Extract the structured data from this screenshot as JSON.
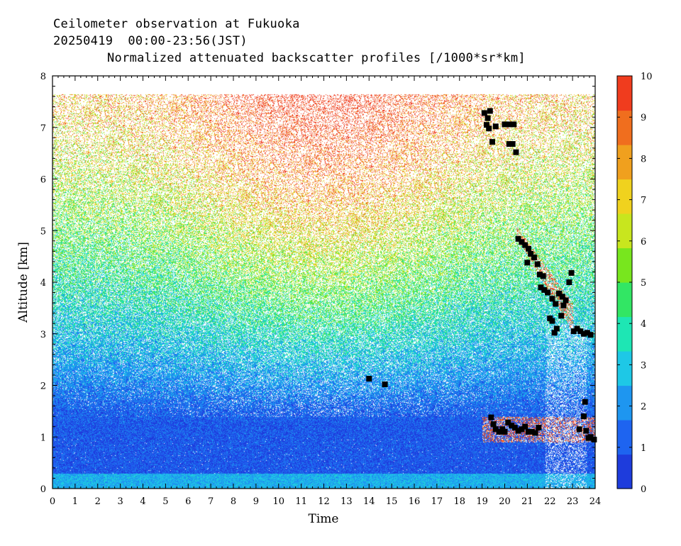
{
  "header": {
    "line1": "Ceilometer observation at Fukuoka",
    "line2": "20250419  00:00-23:56(JST)",
    "line3": "Normalized attenuated backscatter profiles [/1000*sr*km]"
  },
  "chart_data": {
    "type": "heatmap",
    "xlabel": "Time",
    "ylabel": "Altitude [km]",
    "xlim": [
      0,
      24
    ],
    "ylim": [
      0,
      8
    ],
    "data_top_km": 7.65,
    "xticks": [
      "0",
      "1",
      "2",
      "3",
      "4",
      "5",
      "6",
      "7",
      "8",
      "9",
      "10",
      "11",
      "12",
      "13",
      "14",
      "15",
      "16",
      "17",
      "18",
      "19",
      "20",
      "21",
      "22",
      "23",
      "24"
    ],
    "yticks": [
      "0",
      "1",
      "2",
      "3",
      "4",
      "5",
      "6",
      "7",
      "8"
    ],
    "colorbar": {
      "range": [
        0,
        10
      ],
      "ticks": [
        "0",
        "1",
        "2",
        "3",
        "4",
        "5",
        "6",
        "7",
        "8",
        "9",
        "10"
      ],
      "colors": [
        "#1e3cdc",
        "#1e64f0",
        "#1e96f0",
        "#1ec8e6",
        "#1ee6b4",
        "#32e664",
        "#78e61e",
        "#c8e61e",
        "#f0d21e",
        "#f0a01e",
        "#f06e1e",
        "#f03c1e"
      ]
    },
    "cloud_base_points": [
      [
        14.0,
        2.13
      ],
      [
        14.7,
        2.02
      ],
      [
        19.1,
        7.28
      ],
      [
        19.25,
        7.18
      ],
      [
        19.35,
        7.32
      ],
      [
        19.2,
        7.05
      ],
      [
        19.3,
        6.98
      ],
      [
        19.6,
        7.02
      ],
      [
        19.45,
        6.72
      ],
      [
        20.0,
        7.06
      ],
      [
        20.2,
        7.06
      ],
      [
        20.4,
        7.06
      ],
      [
        20.2,
        6.68
      ],
      [
        20.35,
        6.68
      ],
      [
        20.5,
        6.52
      ],
      [
        19.4,
        1.38
      ],
      [
        19.5,
        1.25
      ],
      [
        19.6,
        1.15
      ],
      [
        19.75,
        1.1
      ],
      [
        19.9,
        1.15
      ],
      [
        20.0,
        1.1
      ],
      [
        20.15,
        1.28
      ],
      [
        20.3,
        1.22
      ],
      [
        20.45,
        1.18
      ],
      [
        20.6,
        1.12
      ],
      [
        20.75,
        1.15
      ],
      [
        20.9,
        1.2
      ],
      [
        21.05,
        1.1
      ],
      [
        21.2,
        1.1
      ],
      [
        21.35,
        1.08
      ],
      [
        21.5,
        1.18
      ],
      [
        20.6,
        4.84
      ],
      [
        20.75,
        4.78
      ],
      [
        20.9,
        4.72
      ],
      [
        21.05,
        4.65
      ],
      [
        21.15,
        4.55
      ],
      [
        21.0,
        4.38
      ],
      [
        21.3,
        4.48
      ],
      [
        21.45,
        4.35
      ],
      [
        21.55,
        4.15
      ],
      [
        21.7,
        4.12
      ],
      [
        21.6,
        3.9
      ],
      [
        21.75,
        3.85
      ],
      [
        21.9,
        3.8
      ],
      [
        22.1,
        3.68
      ],
      [
        22.25,
        3.58
      ],
      [
        22.4,
        3.78
      ],
      [
        22.55,
        3.72
      ],
      [
        22.7,
        3.65
      ],
      [
        22.85,
        4.0
      ],
      [
        22.95,
        4.18
      ],
      [
        22.0,
        3.3
      ],
      [
        22.1,
        3.25
      ],
      [
        22.3,
        3.1
      ],
      [
        22.5,
        3.35
      ],
      [
        22.6,
        3.55
      ],
      [
        22.2,
        3.02
      ],
      [
        23.05,
        3.05
      ],
      [
        23.2,
        3.1
      ],
      [
        23.35,
        3.05
      ],
      [
        23.5,
        3.0
      ],
      [
        23.65,
        3.02
      ],
      [
        23.8,
        2.98
      ],
      [
        23.55,
        1.68
      ],
      [
        23.5,
        1.4
      ],
      [
        23.3,
        1.15
      ],
      [
        23.6,
        1.12
      ],
      [
        23.7,
        0.98
      ],
      [
        23.8,
        1.0
      ],
      [
        23.95,
        0.95
      ]
    ]
  }
}
